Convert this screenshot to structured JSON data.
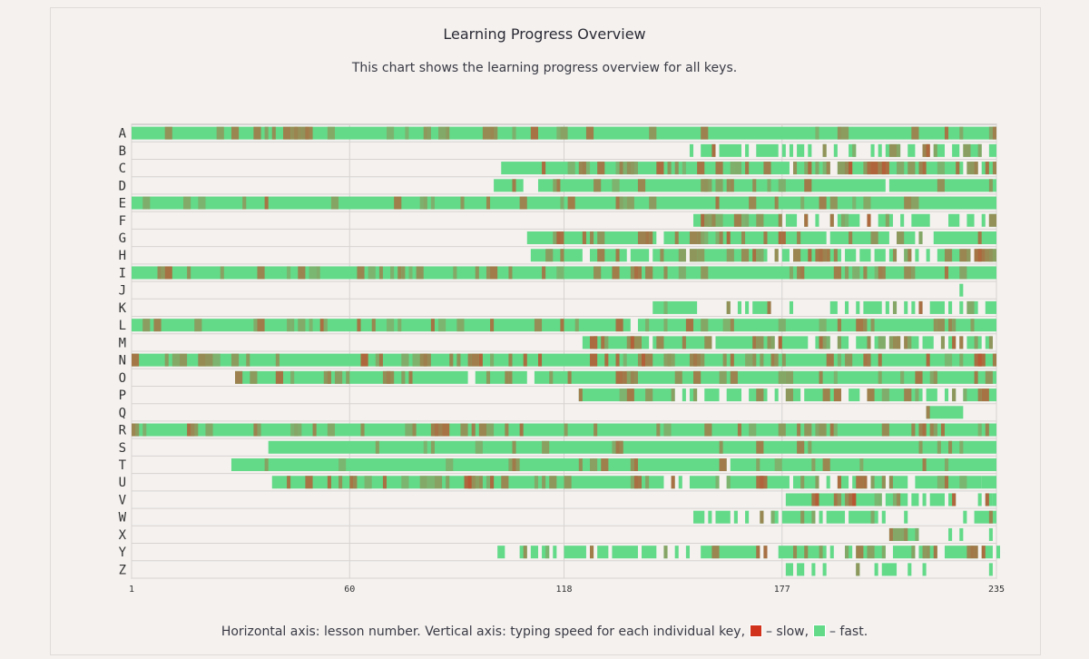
{
  "page": {
    "title": "Learning Progress Overview",
    "subtitle": "This chart shows the learning progress overview for all keys."
  },
  "footnote": {
    "text": "Horizontal axis: lesson number. Vertical axis: typing speed for each individual key,",
    "slow_label": "– slow,",
    "fast_label": "– fast."
  },
  "colors": {
    "slow": "#d0321b",
    "fast": "#63da88",
    "grid": "#d6d3d1",
    "axis": "#b9b6b4"
  },
  "chart_data": {
    "type": "heatmap",
    "x_ticks": [
      1,
      60,
      118,
      177,
      235
    ],
    "xlim": [
      1,
      235
    ],
    "keys": [
      "A",
      "B",
      "C",
      "D",
      "E",
      "F",
      "G",
      "H",
      "I",
      "J",
      "K",
      "L",
      "M",
      "N",
      "O",
      "P",
      "Q",
      "R",
      "S",
      "T",
      "U",
      "V",
      "W",
      "X",
      "Y",
      "Z"
    ],
    "rows": [
      {
        "key": "A",
        "segments": [
          {
            "from": 1,
            "to": 235
          }
        ],
        "slow_hint": 0.3
      },
      {
        "key": "B",
        "segments": [
          {
            "from": 152,
            "to": 153
          },
          {
            "from": 155,
            "to": 159
          },
          {
            "from": 160,
            "to": 166
          },
          {
            "from": 167,
            "to": 168
          },
          {
            "from": 170,
            "to": 176
          },
          {
            "from": 177,
            "to": 178
          },
          {
            "from": 179,
            "to": 180
          },
          {
            "from": 181,
            "to": 183
          },
          {
            "from": 184,
            "to": 185
          },
          {
            "from": 188,
            "to": 189
          },
          {
            "from": 191,
            "to": 192
          },
          {
            "from": 195,
            "to": 197
          },
          {
            "from": 201,
            "to": 202
          },
          {
            "from": 203,
            "to": 204
          },
          {
            "from": 205,
            "to": 209
          },
          {
            "from": 211,
            "to": 213
          },
          {
            "from": 215,
            "to": 217
          },
          {
            "from": 218,
            "to": 221
          },
          {
            "from": 223,
            "to": 225
          },
          {
            "from": 226,
            "to": 231
          },
          {
            "from": 233,
            "to": 235
          }
        ],
        "slow_hint": 0.4
      },
      {
        "key": "C",
        "segments": [
          {
            "from": 101,
            "to": 179
          },
          {
            "from": 180,
            "to": 190
          },
          {
            "from": 192,
            "to": 226
          },
          {
            "from": 227,
            "to": 230
          },
          {
            "from": 231,
            "to": 235
          }
        ],
        "slow_hint": 0.45
      },
      {
        "key": "D",
        "segments": [
          {
            "from": 99,
            "to": 107
          },
          {
            "from": 111,
            "to": 205
          },
          {
            "from": 206,
            "to": 235
          }
        ],
        "slow_hint": 0.2
      },
      {
        "key": "E",
        "segments": [
          {
            "from": 1,
            "to": 235
          }
        ],
        "slow_hint": 0.25
      },
      {
        "key": "F",
        "segments": [
          {
            "from": 153,
            "to": 177
          },
          {
            "from": 178,
            "to": 181
          },
          {
            "from": 183,
            "to": 184
          },
          {
            "from": 186,
            "to": 187
          },
          {
            "from": 190,
            "to": 191
          },
          {
            "from": 192,
            "to": 198
          },
          {
            "from": 200,
            "to": 201
          },
          {
            "from": 203,
            "to": 207
          },
          {
            "from": 209,
            "to": 210
          },
          {
            "from": 212,
            "to": 217
          },
          {
            "from": 222,
            "to": 225
          },
          {
            "from": 227,
            "to": 229
          },
          {
            "from": 231,
            "to": 232
          },
          {
            "from": 233,
            "to": 235
          }
        ],
        "slow_hint": 0.45
      },
      {
        "key": "G",
        "segments": [
          {
            "from": 108,
            "to": 143
          },
          {
            "from": 145,
            "to": 189
          },
          {
            "from": 190,
            "to": 206
          },
          {
            "from": 208,
            "to": 213
          },
          {
            "from": 214,
            "to": 215
          },
          {
            "from": 218,
            "to": 235
          }
        ],
        "slow_hint": 0.35
      },
      {
        "key": "H",
        "segments": [
          {
            "from": 109,
            "to": 123
          },
          {
            "from": 125,
            "to": 135
          },
          {
            "from": 136,
            "to": 141
          },
          {
            "from": 142,
            "to": 151
          },
          {
            "from": 152,
            "to": 173
          },
          {
            "from": 175,
            "to": 176
          },
          {
            "from": 177,
            "to": 179
          },
          {
            "from": 180,
            "to": 193
          },
          {
            "from": 194,
            "to": 197
          },
          {
            "from": 198,
            "to": 201
          },
          {
            "from": 202,
            "to": 205
          },
          {
            "from": 206,
            "to": 208
          },
          {
            "from": 210,
            "to": 212
          },
          {
            "from": 213,
            "to": 214
          },
          {
            "from": 216,
            "to": 217
          },
          {
            "from": 219,
            "to": 228
          },
          {
            "from": 229,
            "to": 235
          }
        ],
        "slow_hint": 0.35
      },
      {
        "key": "I",
        "segments": [
          {
            "from": 1,
            "to": 235
          }
        ],
        "slow_hint": 0.3
      },
      {
        "key": "J",
        "segments": [
          {
            "from": 225,
            "to": 226
          }
        ],
        "slow_hint": 0.0
      },
      {
        "key": "K",
        "segments": [
          {
            "from": 142,
            "to": 154
          },
          {
            "from": 162,
            "to": 163
          },
          {
            "from": 165,
            "to": 166
          },
          {
            "from": 167,
            "to": 168
          },
          {
            "from": 169,
            "to": 174
          },
          {
            "from": 179,
            "to": 180
          },
          {
            "from": 190,
            "to": 192
          },
          {
            "from": 194,
            "to": 195
          },
          {
            "from": 197,
            "to": 198
          },
          {
            "from": 199,
            "to": 204
          },
          {
            "from": 205,
            "to": 206
          },
          {
            "from": 207,
            "to": 208
          },
          {
            "from": 210,
            "to": 211
          },
          {
            "from": 212,
            "to": 213
          },
          {
            "from": 214,
            "to": 215
          },
          {
            "from": 217,
            "to": 221
          },
          {
            "from": 222,
            "to": 223
          },
          {
            "from": 225,
            "to": 226
          },
          {
            "from": 227,
            "to": 230
          },
          {
            "from": 232,
            "to": 235
          }
        ],
        "slow_hint": 0.35
      },
      {
        "key": "L",
        "segments": [
          {
            "from": 1,
            "to": 136
          },
          {
            "from": 138,
            "to": 235
          }
        ],
        "slow_hint": 0.35
      },
      {
        "key": "M",
        "segments": [
          {
            "from": 123,
            "to": 141
          },
          {
            "from": 142,
            "to": 158
          },
          {
            "from": 159,
            "to": 175
          },
          {
            "from": 176,
            "to": 184
          },
          {
            "from": 186,
            "to": 190
          },
          {
            "from": 192,
            "to": 195
          },
          {
            "from": 197,
            "to": 201
          },
          {
            "from": 202,
            "to": 205
          },
          {
            "from": 206,
            "to": 209
          },
          {
            "from": 210,
            "to": 214
          },
          {
            "from": 215,
            "to": 218
          },
          {
            "from": 220,
            "to": 221
          },
          {
            "from": 222,
            "to": 224
          },
          {
            "from": 225,
            "to": 226
          },
          {
            "from": 227,
            "to": 231
          },
          {
            "from": 232,
            "to": 234
          }
        ],
        "slow_hint": 0.5
      },
      {
        "key": "N",
        "segments": [
          {
            "from": 1,
            "to": 235
          }
        ],
        "slow_hint": 0.45
      },
      {
        "key": "O",
        "segments": [
          {
            "from": 29,
            "to": 92
          },
          {
            "from": 94,
            "to": 108
          },
          {
            "from": 110,
            "to": 235
          }
        ],
        "slow_hint": 0.3
      },
      {
        "key": "P",
        "segments": [
          {
            "from": 122,
            "to": 148
          },
          {
            "from": 150,
            "to": 151
          },
          {
            "from": 152,
            "to": 154
          },
          {
            "from": 156,
            "to": 160
          },
          {
            "from": 162,
            "to": 166
          },
          {
            "from": 168,
            "to": 173
          },
          {
            "from": 175,
            "to": 176
          },
          {
            "from": 178,
            "to": 182
          },
          {
            "from": 183,
            "to": 193
          },
          {
            "from": 195,
            "to": 198
          },
          {
            "from": 200,
            "to": 215
          },
          {
            "from": 216,
            "to": 219
          },
          {
            "from": 221,
            "to": 222
          },
          {
            "from": 223,
            "to": 224
          },
          {
            "from": 226,
            "to": 235
          }
        ],
        "slow_hint": 0.35
      },
      {
        "key": "Q",
        "segments": [
          {
            "from": 216,
            "to": 226
          }
        ],
        "slow_hint": 0.3
      },
      {
        "key": "R",
        "segments": [
          {
            "from": 1,
            "to": 235
          }
        ],
        "slow_hint": 0.3
      },
      {
        "key": "S",
        "segments": [
          {
            "from": 38,
            "to": 235
          }
        ],
        "slow_hint": 0.2
      },
      {
        "key": "T",
        "segments": [
          {
            "from": 28,
            "to": 162
          },
          {
            "from": 163,
            "to": 235
          }
        ],
        "slow_hint": 0.2
      },
      {
        "key": "U",
        "segments": [
          {
            "from": 39,
            "to": 145
          },
          {
            "from": 147,
            "to": 148
          },
          {
            "from": 149,
            "to": 150
          },
          {
            "from": 152,
            "to": 160
          },
          {
            "from": 162,
            "to": 179
          },
          {
            "from": 180,
            "to": 187
          },
          {
            "from": 189,
            "to": 190
          },
          {
            "from": 192,
            "to": 195
          },
          {
            "from": 196,
            "to": 200
          },
          {
            "from": 201,
            "to": 205
          },
          {
            "from": 206,
            "to": 211
          },
          {
            "from": 213,
            "to": 231
          },
          {
            "from": 231,
            "to": 235
          }
        ],
        "slow_hint": 0.4
      },
      {
        "key": "V",
        "segments": [
          {
            "from": 178,
            "to": 204
          },
          {
            "from": 205,
            "to": 211
          },
          {
            "from": 212,
            "to": 214
          },
          {
            "from": 215,
            "to": 216
          },
          {
            "from": 217,
            "to": 221
          },
          {
            "from": 222,
            "to": 224
          },
          {
            "from": 230,
            "to": 231
          },
          {
            "from": 232,
            "to": 234
          },
          {
            "from": 234,
            "to": 235
          }
        ],
        "slow_hint": 0.45
      },
      {
        "key": "W",
        "segments": [
          {
            "from": 153,
            "to": 156
          },
          {
            "from": 157,
            "to": 158
          },
          {
            "from": 159,
            "to": 163
          },
          {
            "from": 164,
            "to": 165
          },
          {
            "from": 167,
            "to": 168
          },
          {
            "from": 171,
            "to": 172
          },
          {
            "from": 174,
            "to": 176
          },
          {
            "from": 177,
            "to": 186
          },
          {
            "from": 187,
            "to": 188
          },
          {
            "from": 189,
            "to": 194
          },
          {
            "from": 195,
            "to": 203
          },
          {
            "from": 204,
            "to": 205
          },
          {
            "from": 210,
            "to": 211
          },
          {
            "from": 226,
            "to": 227
          },
          {
            "from": 229,
            "to": 235
          }
        ],
        "slow_hint": 0.35
      },
      {
        "key": "X",
        "segments": [
          {
            "from": 206,
            "to": 214
          },
          {
            "from": 222,
            "to": 223
          },
          {
            "from": 225,
            "to": 226
          },
          {
            "from": 233,
            "to": 234
          }
        ],
        "slow_hint": 0.6
      },
      {
        "key": "Y",
        "segments": [
          {
            "from": 100,
            "to": 102
          },
          {
            "from": 106,
            "to": 108
          },
          {
            "from": 109,
            "to": 111
          },
          {
            "from": 112,
            "to": 114
          },
          {
            "from": 115,
            "to": 116
          },
          {
            "from": 118,
            "to": 124
          },
          {
            "from": 125,
            "to": 126
          },
          {
            "from": 127,
            "to": 130
          },
          {
            "from": 131,
            "to": 138
          },
          {
            "from": 139,
            "to": 143
          },
          {
            "from": 145,
            "to": 146
          },
          {
            "from": 148,
            "to": 149
          },
          {
            "from": 151,
            "to": 152
          },
          {
            "from": 155,
            "to": 171
          },
          {
            "from": 172,
            "to": 173
          },
          {
            "from": 176,
            "to": 189
          },
          {
            "from": 190,
            "to": 191
          },
          {
            "from": 194,
            "to": 196
          },
          {
            "from": 197,
            "to": 205
          },
          {
            "from": 207,
            "to": 213
          },
          {
            "from": 214,
            "to": 219
          },
          {
            "from": 221,
            "to": 230
          },
          {
            "from": 231,
            "to": 234
          },
          {
            "from": 235,
            "to": 235
          }
        ],
        "slow_hint": 0.4
      },
      {
        "key": "Z",
        "segments": [
          {
            "from": 178,
            "to": 180
          },
          {
            "from": 181,
            "to": 183
          },
          {
            "from": 185,
            "to": 186
          },
          {
            "from": 188,
            "to": 189
          },
          {
            "from": 197,
            "to": 198
          },
          {
            "from": 202,
            "to": 203
          },
          {
            "from": 204,
            "to": 208
          },
          {
            "from": 211,
            "to": 212
          },
          {
            "from": 215,
            "to": 216
          },
          {
            "from": 233,
            "to": 234
          }
        ],
        "slow_hint": 0.4
      }
    ]
  }
}
